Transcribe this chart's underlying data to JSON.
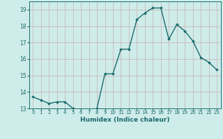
{
  "x": [
    0,
    1,
    2,
    3,
    4,
    5,
    6,
    7,
    8,
    9,
    10,
    11,
    12,
    13,
    14,
    15,
    16,
    17,
    18,
    19,
    20,
    21,
    22,
    23
  ],
  "y": [
    13.7,
    13.5,
    13.3,
    13.4,
    13.4,
    13.0,
    12.8,
    12.75,
    13.0,
    15.1,
    15.1,
    16.6,
    16.6,
    18.4,
    18.8,
    19.1,
    19.1,
    17.2,
    18.1,
    17.7,
    17.1,
    16.1,
    15.8,
    15.35
  ],
  "xlabel": "Humidex (Indice chaleur)",
  "bg_color": "#ceecea",
  "grid_color": "#b8d8d5",
  "line_color": "#1a6b6b",
  "marker_color": "#1a6b6b",
  "ylim": [
    13,
    19.5
  ],
  "xlim": [
    -0.5,
    23.5
  ],
  "yticks": [
    13,
    14,
    15,
    16,
    17,
    18,
    19
  ],
  "xticks": [
    0,
    1,
    2,
    3,
    4,
    5,
    6,
    7,
    8,
    9,
    10,
    11,
    12,
    13,
    14,
    15,
    16,
    17,
    18,
    19,
    20,
    21,
    22,
    23
  ],
  "xtick_labels": [
    "0",
    "1",
    "2",
    "3",
    "4",
    "5",
    "6",
    "7",
    "8",
    "9",
    "10",
    "11",
    "12",
    "13",
    "14",
    "15",
    "16",
    "17",
    "18",
    "19",
    "20",
    "21",
    "22",
    "23"
  ]
}
